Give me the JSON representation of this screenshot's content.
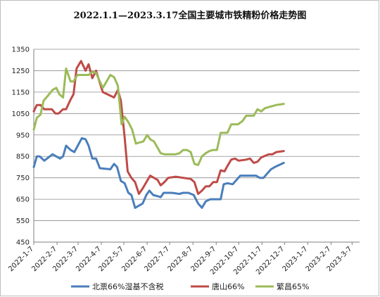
{
  "chart_data": {
    "type": "line",
    "title": "2022.1.1—2023.3.17全国主要城市铁精粉价格走势图",
    "ylim": [
      450,
      1350
    ],
    "yticks": [
      450,
      550,
      650,
      750,
      850,
      950,
      1050,
      1150,
      1250,
      1350
    ],
    "xlim": [
      "2022-01-07",
      "2023-03-17"
    ],
    "xticks": [
      "2022-1-7",
      "2022-2-7",
      "2022-3-7",
      "2022-4-7",
      "2022-5-7",
      "2022-6-7",
      "2022-7-7",
      "2022-8-7",
      "2022-9-7",
      "2022-10-7",
      "2022-11-7",
      "2022-12-7",
      "2023-1-7",
      "2023-2-7",
      "2023-3-7"
    ],
    "grid": "horizontal",
    "legend": "bottom",
    "series": [
      {
        "name": "北票66%湿基不含税",
        "color": "#4a7ebb",
        "points": [
          [
            "2022-01-07",
            800
          ],
          [
            "2022-01-11",
            850
          ],
          [
            "2022-01-15",
            850
          ],
          [
            "2022-01-21",
            830
          ],
          [
            "2022-02-01",
            860
          ],
          [
            "2022-02-11",
            840
          ],
          [
            "2022-02-15",
            850
          ],
          [
            "2022-02-19",
            900
          ],
          [
            "2022-02-25",
            880
          ],
          [
            "2022-03-02",
            870
          ],
          [
            "2022-03-12",
            935
          ],
          [
            "2022-03-17",
            930
          ],
          [
            "2022-03-21",
            900
          ],
          [
            "2022-03-26",
            840
          ],
          [
            "2022-03-31",
            840
          ],
          [
            "2022-04-05",
            795
          ],
          [
            "2022-04-19",
            790
          ],
          [
            "2022-04-24",
            815
          ],
          [
            "2022-04-28",
            800
          ],
          [
            "2022-05-03",
            735
          ],
          [
            "2022-05-08",
            725
          ],
          [
            "2022-05-13",
            680
          ],
          [
            "2022-05-17",
            670
          ],
          [
            "2022-05-22",
            610
          ],
          [
            "2022-06-01",
            630
          ],
          [
            "2022-06-06",
            670
          ],
          [
            "2022-06-10",
            690
          ],
          [
            "2022-06-15",
            670
          ],
          [
            "2022-06-20",
            665
          ],
          [
            "2022-06-25",
            660
          ],
          [
            "2022-06-29",
            680
          ],
          [
            "2022-07-10",
            680
          ],
          [
            "2022-07-20",
            675
          ],
          [
            "2022-07-25",
            680
          ],
          [
            "2022-08-01",
            680
          ],
          [
            "2022-08-08",
            670
          ],
          [
            "2022-08-14",
            630
          ],
          [
            "2022-08-19",
            610
          ],
          [
            "2022-08-24",
            640
          ],
          [
            "2022-08-30",
            650
          ],
          [
            "2022-09-13",
            650
          ],
          [
            "2022-09-17",
            720
          ],
          [
            "2022-09-22",
            725
          ],
          [
            "2022-09-29",
            720
          ],
          [
            "2022-10-09",
            760
          ],
          [
            "2022-10-30",
            760
          ],
          [
            "2022-11-04",
            750
          ],
          [
            "2022-11-09",
            750
          ],
          [
            "2022-11-19",
            790
          ],
          [
            "2022-11-24",
            800
          ],
          [
            "2022-12-06",
            820
          ]
        ]
      },
      {
        "name": "唐山66%",
        "color": "#be4b48",
        "points": [
          [
            "2022-01-07",
            1060
          ],
          [
            "2022-01-11",
            1090
          ],
          [
            "2022-01-16",
            1090
          ],
          [
            "2022-01-21",
            1070
          ],
          [
            "2022-01-31",
            1070
          ],
          [
            "2022-02-05",
            1050
          ],
          [
            "2022-02-09",
            1050
          ],
          [
            "2022-02-15",
            1070
          ],
          [
            "2022-02-19",
            1070
          ],
          [
            "2022-02-25",
            1115
          ],
          [
            "2022-03-01",
            1140
          ],
          [
            "2022-03-05",
            1260
          ],
          [
            "2022-03-11",
            1295
          ],
          [
            "2022-03-17",
            1250
          ],
          [
            "2022-03-21",
            1280
          ],
          [
            "2022-03-26",
            1215
          ],
          [
            "2022-03-31",
            1250
          ],
          [
            "2022-04-09",
            1150
          ],
          [
            "2022-04-15",
            1140
          ],
          [
            "2022-04-24",
            1125
          ],
          [
            "2022-04-29",
            1160
          ],
          [
            "2022-05-03",
            1110
          ],
          [
            "2022-05-08",
            940
          ],
          [
            "2022-05-12",
            780
          ],
          [
            "2022-05-17",
            750
          ],
          [
            "2022-05-22",
            730
          ],
          [
            "2022-05-27",
            675
          ],
          [
            "2022-06-01",
            700
          ],
          [
            "2022-06-06",
            730
          ],
          [
            "2022-06-11",
            760
          ],
          [
            "2022-06-21",
            740
          ],
          [
            "2022-06-25",
            715
          ],
          [
            "2022-06-30",
            730
          ],
          [
            "2022-07-05",
            750
          ],
          [
            "2022-07-15",
            755
          ],
          [
            "2022-07-25",
            750
          ],
          [
            "2022-08-04",
            745
          ],
          [
            "2022-08-09",
            730
          ],
          [
            "2022-08-14",
            675
          ],
          [
            "2022-08-19",
            690
          ],
          [
            "2022-08-24",
            710
          ],
          [
            "2022-08-29",
            710
          ],
          [
            "2022-09-03",
            730
          ],
          [
            "2022-09-08",
            730
          ],
          [
            "2022-09-13",
            785
          ],
          [
            "2022-09-18",
            780
          ],
          [
            "2022-09-22",
            805
          ],
          [
            "2022-09-27",
            835
          ],
          [
            "2022-10-02",
            840
          ],
          [
            "2022-10-07",
            830
          ],
          [
            "2022-10-17",
            835
          ],
          [
            "2022-10-22",
            840
          ],
          [
            "2022-10-27",
            820
          ],
          [
            "2022-11-01",
            825
          ],
          [
            "2022-11-06",
            845
          ],
          [
            "2022-11-16",
            860
          ],
          [
            "2022-11-21",
            860
          ],
          [
            "2022-11-26",
            870
          ],
          [
            "2022-12-06",
            875
          ]
        ]
      },
      {
        "name": "繁昌65%",
        "color": "#9bbb59",
        "points": [
          [
            "2022-01-07",
            975
          ],
          [
            "2022-01-11",
            1030
          ],
          [
            "2022-01-16",
            1045
          ],
          [
            "2022-01-20",
            1110
          ],
          [
            "2022-01-25",
            1130
          ],
          [
            "2022-02-01",
            1160
          ],
          [
            "2022-02-06",
            1170
          ],
          [
            "2022-02-10",
            1140
          ],
          [
            "2022-02-15",
            1125
          ],
          [
            "2022-02-19",
            1260
          ],
          [
            "2022-02-25",
            1200
          ],
          [
            "2022-03-01",
            1200
          ],
          [
            "2022-03-06",
            1230
          ],
          [
            "2022-03-21",
            1230
          ],
          [
            "2022-03-26",
            1245
          ],
          [
            "2022-03-31",
            1240
          ],
          [
            "2022-04-05",
            1200
          ],
          [
            "2022-04-09",
            1170
          ],
          [
            "2022-04-14",
            1200
          ],
          [
            "2022-04-19",
            1230
          ],
          [
            "2022-04-24",
            1220
          ],
          [
            "2022-04-29",
            1180
          ],
          [
            "2022-05-04",
            1000
          ],
          [
            "2022-05-08",
            1035
          ],
          [
            "2022-05-13",
            1010
          ],
          [
            "2022-05-18",
            975
          ],
          [
            "2022-05-23",
            910
          ],
          [
            "2022-05-28",
            915
          ],
          [
            "2022-06-02",
            920
          ],
          [
            "2022-06-07",
            950
          ],
          [
            "2022-06-11",
            930
          ],
          [
            "2022-06-16",
            920
          ],
          [
            "2022-06-21",
            890
          ],
          [
            "2022-06-25",
            865
          ],
          [
            "2022-06-30",
            860
          ],
          [
            "2022-07-10",
            860
          ],
          [
            "2022-07-15",
            860
          ],
          [
            "2022-07-20",
            865
          ],
          [
            "2022-07-25",
            880
          ],
          [
            "2022-07-30",
            880
          ],
          [
            "2022-08-04",
            870
          ],
          [
            "2022-08-09",
            815
          ],
          [
            "2022-08-14",
            810
          ],
          [
            "2022-08-19",
            850
          ],
          [
            "2022-08-24",
            865
          ],
          [
            "2022-08-29",
            875
          ],
          [
            "2022-09-03",
            880
          ],
          [
            "2022-09-08",
            880
          ],
          [
            "2022-09-13",
            960
          ],
          [
            "2022-09-18",
            960
          ],
          [
            "2022-09-22",
            960
          ],
          [
            "2022-09-27",
            1000
          ],
          [
            "2022-10-06",
            1000
          ],
          [
            "2022-10-12",
            1015
          ],
          [
            "2022-10-17",
            1040
          ],
          [
            "2022-10-22",
            1040
          ],
          [
            "2022-10-27",
            1040
          ],
          [
            "2022-11-01",
            1070
          ],
          [
            "2022-11-06",
            1060
          ],
          [
            "2022-11-11",
            1075
          ],
          [
            "2022-11-16",
            1080
          ],
          [
            "2022-11-26",
            1090
          ],
          [
            "2022-12-06",
            1095
          ]
        ]
      }
    ]
  }
}
